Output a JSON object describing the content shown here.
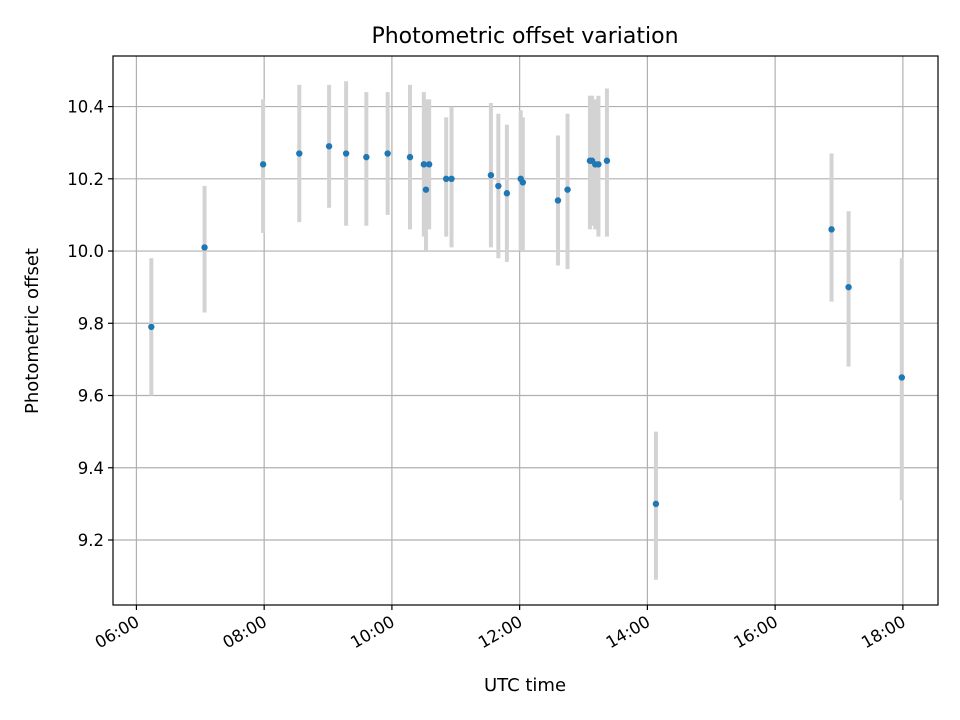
{
  "chart_data": {
    "type": "scatter",
    "title": "Photometric offset variation",
    "xlabel": "UTC time",
    "ylabel": "Photometric offset",
    "x_unit": "time of day (UTC)",
    "xlim": [
      "05:38",
      "18:33"
    ],
    "ylim": [
      9.02,
      10.54
    ],
    "x_ticks": [
      "06:00",
      "08:00",
      "10:00",
      "12:00",
      "14:00",
      "16:00",
      "18:00"
    ],
    "y_ticks": [
      9.2,
      9.4,
      9.6,
      9.8,
      10.0,
      10.2,
      10.4
    ],
    "y_tick_labels": [
      "9.2",
      "9.4",
      "9.6",
      "9.8",
      "10.0",
      "10.2",
      "10.4"
    ],
    "grid": true,
    "legend": "none",
    "marker_color": "#1f77b4",
    "errorbar_color": "#d3d3d3",
    "series": [
      {
        "points": [
          {
            "x": "06:14",
            "y": 9.79,
            "ylo": 9.6,
            "yhi": 9.98
          },
          {
            "x": "07:04",
            "y": 10.01,
            "ylo": 9.83,
            "yhi": 10.18
          },
          {
            "x": "07:59",
            "y": 10.24,
            "ylo": 10.05,
            "yhi": 10.42
          },
          {
            "x": "08:33",
            "y": 10.27,
            "ylo": 10.08,
            "yhi": 10.46
          },
          {
            "x": "09:01",
            "y": 10.29,
            "ylo": 10.12,
            "yhi": 10.46
          },
          {
            "x": "09:17",
            "y": 10.27,
            "ylo": 10.07,
            "yhi": 10.47
          },
          {
            "x": "09:36",
            "y": 10.26,
            "ylo": 10.07,
            "yhi": 10.44
          },
          {
            "x": "09:56",
            "y": 10.27,
            "ylo": 10.1,
            "yhi": 10.44
          },
          {
            "x": "10:17",
            "y": 10.26,
            "ylo": 10.06,
            "yhi": 10.46
          },
          {
            "x": "10:30",
            "y": 10.24,
            "ylo": 10.04,
            "yhi": 10.44
          },
          {
            "x": "10:32",
            "y": 10.17,
            "ylo": 10.0,
            "yhi": 10.42
          },
          {
            "x": "10:35",
            "y": 10.24,
            "ylo": 10.06,
            "yhi": 10.42
          },
          {
            "x": "10:51",
            "y": 10.2,
            "ylo": 10.04,
            "yhi": 10.37
          },
          {
            "x": "10:56",
            "y": 10.2,
            "ylo": 10.01,
            "yhi": 10.4
          },
          {
            "x": "11:33",
            "y": 10.21,
            "ylo": 10.01,
            "yhi": 10.41
          },
          {
            "x": "11:40",
            "y": 10.18,
            "ylo": 9.98,
            "yhi": 10.38
          },
          {
            "x": "11:48",
            "y": 10.16,
            "ylo": 9.97,
            "yhi": 10.35
          },
          {
            "x": "12:01",
            "y": 10.2,
            "ylo": 10.0,
            "yhi": 10.39
          },
          {
            "x": "12:03",
            "y": 10.19,
            "ylo": 10.0,
            "yhi": 10.37
          },
          {
            "x": "12:36",
            "y": 10.14,
            "ylo": 9.96,
            "yhi": 10.32
          },
          {
            "x": "12:45",
            "y": 10.17,
            "ylo": 9.95,
            "yhi": 10.38
          },
          {
            "x": "13:06",
            "y": 10.25,
            "ylo": 10.06,
            "yhi": 10.43
          },
          {
            "x": "13:08",
            "y": 10.25,
            "ylo": 10.07,
            "yhi": 10.43
          },
          {
            "x": "13:11",
            "y": 10.24,
            "ylo": 10.06,
            "yhi": 10.42
          },
          {
            "x": "13:14",
            "y": 10.24,
            "ylo": 10.04,
            "yhi": 10.43
          },
          {
            "x": "13:22",
            "y": 10.25,
            "ylo": 10.04,
            "yhi": 10.45
          },
          {
            "x": "14:08",
            "y": 9.3,
            "ylo": 9.09,
            "yhi": 9.5
          },
          {
            "x": "16:53",
            "y": 10.06,
            "ylo": 9.86,
            "yhi": 10.27
          },
          {
            "x": "17:09",
            "y": 9.9,
            "ylo": 9.68,
            "yhi": 10.11
          },
          {
            "x": "17:59",
            "y": 9.65,
            "ylo": 9.31,
            "yhi": 9.98
          }
        ]
      }
    ]
  }
}
